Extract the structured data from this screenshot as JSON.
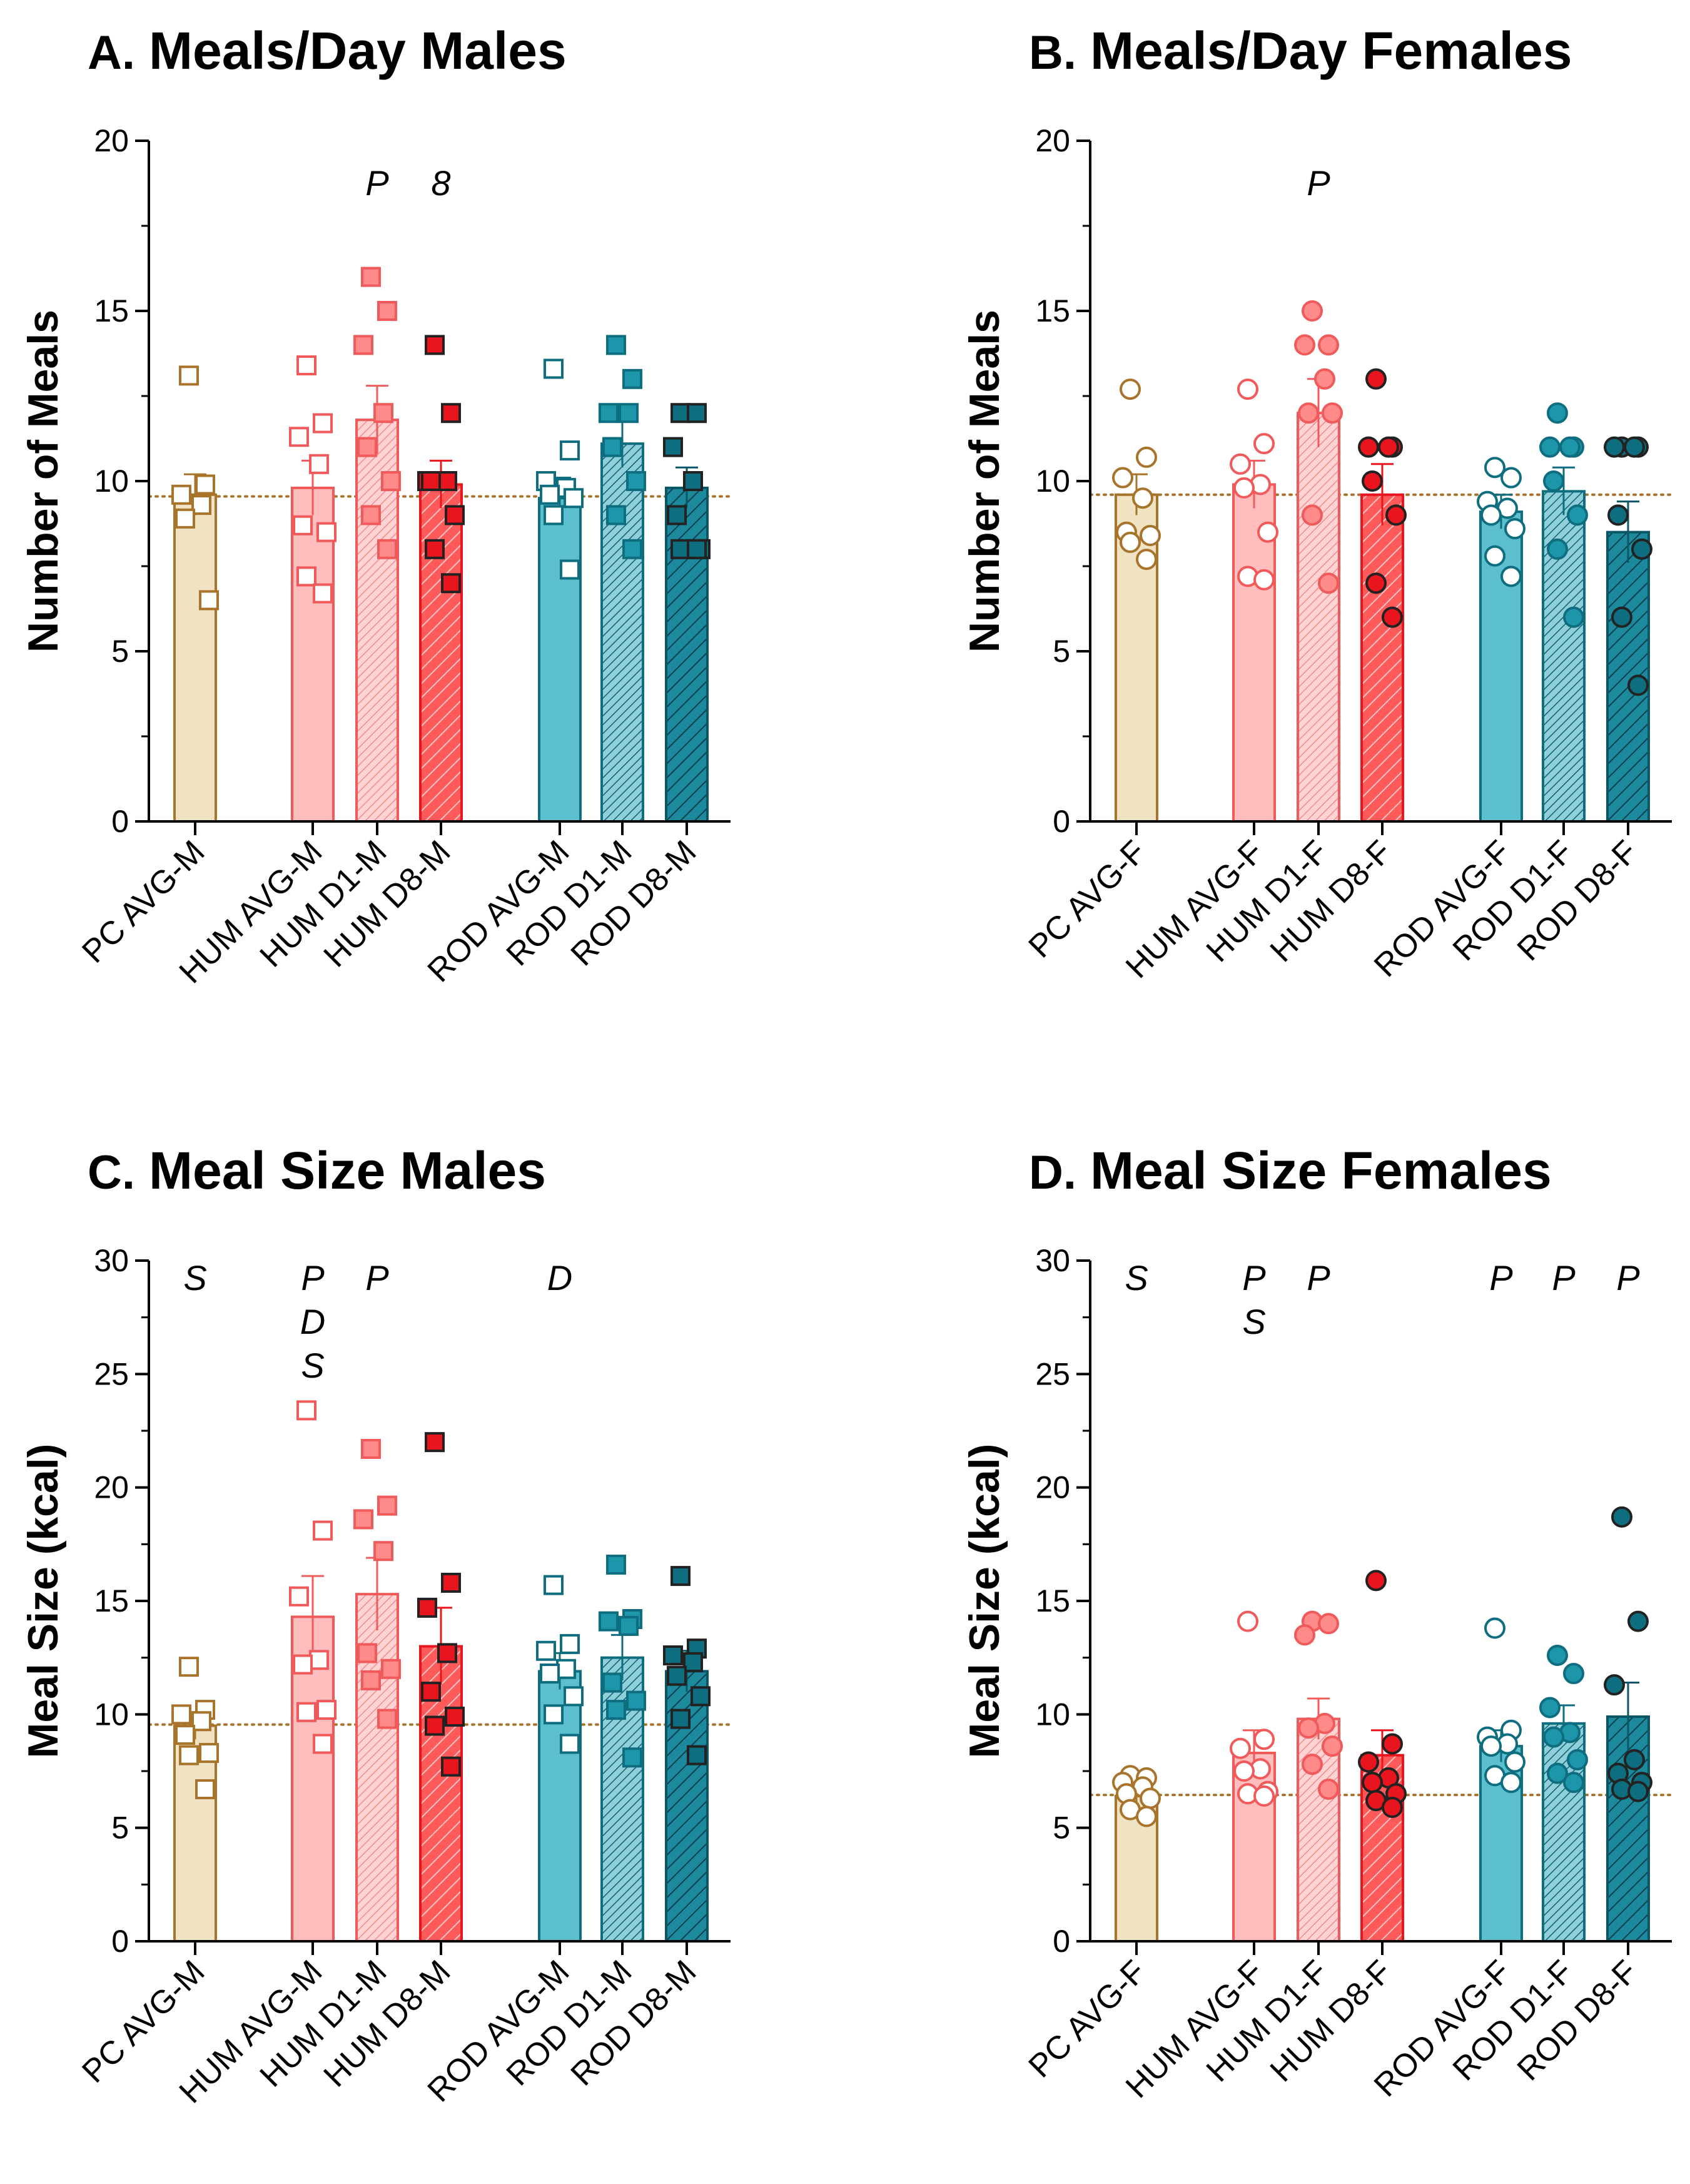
{
  "colors": {
    "pc_edge": "#A8732A",
    "pc_fill": "#EFE3C3",
    "hum_avg_edge": "#F05A5A",
    "hum_avg_fill": "#FFBDBD",
    "hum_d1_edge": "#F05A5A",
    "hum_d1_fill": "#FFD3D3",
    "hum_d8_edge": "#E8141E",
    "hum_d8_fill": "#FF5A5A",
    "rod_avg_edge": "#0E6E80",
    "rod_avg_fill": "#5BBFCE",
    "rod_d1_edge": "#0E6E80",
    "rod_d1_fill": "#8FCFD9",
    "rod_d8_edge": "#0A5566",
    "rod_d8_fill": "#1C8A9C",
    "ref_line": "#A8732A"
  },
  "chart_data": [
    {
      "type": "bar",
      "panel": "A.",
      "title": "Meals/Day Males",
      "ylabel": "Number of Meals",
      "ylim": [
        0,
        20
      ],
      "yticks": [
        "0",
        "5",
        "10",
        "15",
        "20"
      ],
      "marker": "square",
      "categories": [
        "PC AVG-M",
        "HUM AVG-M",
        "HUM D1-M",
        "HUM D8-M",
        "ROD AVG-M",
        "ROD D1-M",
        "ROD D8-M"
      ],
      "values": [
        9.6,
        9.8,
        11.8,
        9.9,
        9.5,
        11.1,
        9.8
      ],
      "sem": [
        0.6,
        0.8,
        1.0,
        0.7,
        0.6,
        0.7,
        0.6
      ],
      "points": [
        [
          13.1,
          9.9,
          9.6,
          9.3,
          8.9,
          6.5
        ],
        [
          13.4,
          11.7,
          11.3,
          10.5,
          8.7,
          8.5,
          7.2,
          6.7
        ],
        [
          16,
          15,
          14,
          12,
          11,
          10,
          9,
          8
        ],
        [
          14,
          12,
          10,
          10,
          10,
          9,
          8,
          7
        ],
        [
          13.3,
          10.9,
          10.0,
          9.8,
          9.6,
          9.5,
          9.0,
          7.4
        ],
        [
          14,
          13,
          12,
          12,
          11,
          10,
          9,
          8
        ],
        [
          12,
          12,
          11,
          10,
          9,
          8,
          8,
          8
        ]
      ],
      "ref_line": 9.55,
      "annotations": [
        "",
        "",
        "P",
        "8",
        "",
        "",
        ""
      ]
    },
    {
      "type": "bar",
      "panel": "B.",
      "title": "Meals/Day Females",
      "ylabel": "Number of Meals",
      "ylim": [
        0,
        20
      ],
      "yticks": [
        "0",
        "5",
        "10",
        "15",
        "20"
      ],
      "marker": "circle",
      "categories": [
        "PC AVG-F",
        "HUM AVG-F",
        "HUM D1-F",
        "HUM D8-F",
        "ROD AVG-F",
        "ROD D1-F",
        "ROD D8-F"
      ],
      "values": [
        9.6,
        9.9,
        12.0,
        9.6,
        9.1,
        9.7,
        8.5
      ],
      "sem": [
        0.6,
        0.7,
        1.0,
        0.9,
        0.5,
        0.7,
        0.9
      ],
      "points": [
        [
          12.7,
          10.7,
          10.1,
          9.5,
          8.5,
          8.4,
          8.2,
          7.7
        ],
        [
          12.7,
          11.1,
          10.5,
          9.9,
          9.8,
          8.5,
          7.2,
          7.1
        ],
        [
          15,
          14,
          14,
          13,
          12,
          12,
          9,
          7
        ],
        [
          13,
          11,
          11,
          11,
          10,
          9,
          7,
          6
        ],
        [
          10.4,
          10.1,
          9.4,
          9.2,
          9.0,
          8.6,
          7.8,
          7.2
        ],
        [
          12,
          11,
          11,
          11,
          10,
          9,
          8,
          6
        ],
        [
          11,
          11,
          11,
          11,
          9,
          8,
          6,
          4
        ]
      ],
      "ref_line": 9.6,
      "annotations": [
        "",
        "",
        "P",
        "",
        "",
        "",
        ""
      ]
    },
    {
      "type": "bar",
      "panel": "C.",
      "title": "Meal Size Males",
      "ylabel": "Meal Size (kcal)",
      "ylim": [
        0,
        30
      ],
      "yticks": [
        "0",
        "5",
        "10",
        "15",
        "20",
        "25",
        "30"
      ],
      "marker": "square",
      "categories": [
        "PC AVG-M",
        "HUM AVG-M",
        "HUM D1-M",
        "HUM D8-M",
        "ROD AVG-M",
        "ROD D1-M",
        "ROD D8-M"
      ],
      "values": [
        9.5,
        14.3,
        15.3,
        13.0,
        11.9,
        12.5,
        11.9
      ],
      "sem": [
        0.6,
        1.8,
        1.6,
        1.7,
        0.8,
        1.0,
        0.9
      ],
      "points": [
        [
          12.1,
          10.2,
          10.0,
          9.7,
          9.1,
          8.3,
          8.2,
          6.7
        ],
        [
          23.4,
          18.1,
          15.2,
          12.4,
          12.2,
          10.2,
          10.1,
          8.7
        ],
        [
          21.7,
          19.2,
          18.6,
          17.2,
          12.7,
          12.0,
          11.5,
          9.8
        ],
        [
          22.0,
          15.8,
          14.7,
          12.7,
          11.0,
          9.9,
          9.5,
          7.7
        ],
        [
          15.7,
          13.1,
          12.8,
          12.0,
          11.8,
          10.8,
          10.0,
          8.7
        ],
        [
          16.6,
          14.2,
          14.1,
          13.9,
          11.4,
          10.6,
          10.2,
          8.1
        ],
        [
          16.1,
          12.9,
          12.6,
          12.3,
          11.7,
          10.8,
          9.8,
          8.2
        ]
      ],
      "ref_line": 9.55,
      "annotations": [
        "S",
        "P\nD\nS",
        "P",
        "",
        "D",
        "",
        ""
      ]
    },
    {
      "type": "bar",
      "panel": "D.",
      "title": "Meal Size Females",
      "ylabel": "Meal Size (kcal)",
      "ylim": [
        0,
        30
      ],
      "yticks": [
        "0",
        "5",
        "10",
        "15",
        "20",
        "25",
        "30"
      ],
      "marker": "circle",
      "categories": [
        "PC AVG-F",
        "HUM AVG-F",
        "HUM D1-F",
        "HUM D8-F",
        "ROD AVG-F",
        "ROD D1-F",
        "ROD D8-F"
      ],
      "values": [
        6.4,
        8.3,
        9.8,
        8.2,
        8.6,
        9.6,
        9.9
      ],
      "sem": [
        0.3,
        1.0,
        0.9,
        1.1,
        0.7,
        0.8,
        1.5
      ],
      "points": [
        [
          7.3,
          7.2,
          7.0,
          6.8,
          6.5,
          6.3,
          5.8,
          5.5
        ],
        [
          14.1,
          8.9,
          8.5,
          7.6,
          7.5,
          6.6,
          6.5,
          6.4
        ],
        [
          14.1,
          14.0,
          13.5,
          9.6,
          9.4,
          8.6,
          7.8,
          6.7
        ],
        [
          15.9,
          8.7,
          7.9,
          7.2,
          7.0,
          6.5,
          6.2,
          5.9
        ],
        [
          13.8,
          9.3,
          9.0,
          8.7,
          8.6,
          7.9,
          7.3,
          7.0
        ],
        [
          12.6,
          11.8,
          10.3,
          9.2,
          9.0,
          8.0,
          7.4,
          7.0
        ],
        [
          18.7,
          14.1,
          11.3,
          8.0,
          7.4,
          7.0,
          6.7,
          6.6
        ]
      ],
      "ref_line": 6.45,
      "annotations": [
        "S",
        "P\nS",
        "P",
        "",
        "P",
        "P",
        "P"
      ]
    }
  ]
}
